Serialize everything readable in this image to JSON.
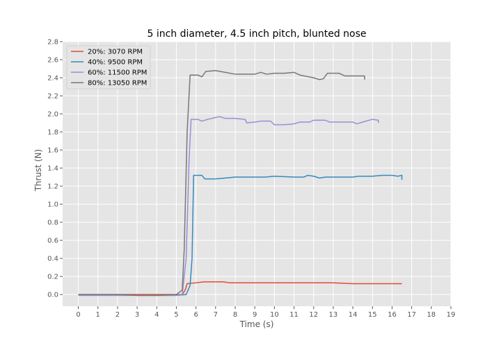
{
  "chart_data": {
    "type": "line",
    "title": "5 inch diameter, 4.5 inch pitch, blunted nose",
    "xlabel": "Time (s)",
    "ylabel": "Thrust (N)",
    "xlim": [
      -0.8,
      19
    ],
    "ylim": [
      -0.13,
      2.8
    ],
    "xticks": [
      0,
      1,
      2,
      3,
      4,
      5,
      6,
      7,
      8,
      9,
      10,
      11,
      12,
      13,
      14,
      15,
      16,
      17,
      18,
      19
    ],
    "yticks": [
      0.0,
      0.2,
      0.4,
      0.6,
      0.8,
      1.0,
      1.2,
      1.4,
      1.6,
      1.8,
      2.0,
      2.2,
      2.4,
      2.6,
      2.8
    ],
    "grid": true,
    "legend_position": "upper-left",
    "background_color": "#e5e5e5",
    "grid_color": "#ffffff",
    "series": [
      {
        "name": "20%: 3070 RPM",
        "color": "#e24a33",
        "points": [
          [
            0,
            0.0
          ],
          [
            1,
            0.0
          ],
          [
            2,
            0.0
          ],
          [
            3,
            0.0
          ],
          [
            4,
            0.0
          ],
          [
            5,
            0.0
          ],
          [
            5.3,
            0.0
          ],
          [
            5.45,
            0.05
          ],
          [
            5.55,
            0.12
          ],
          [
            6,
            0.13
          ],
          [
            6.4,
            0.14
          ],
          [
            7,
            0.14
          ],
          [
            7.4,
            0.14
          ],
          [
            7.7,
            0.13
          ],
          [
            8,
            0.13
          ],
          [
            9,
            0.13
          ],
          [
            9.5,
            0.13
          ],
          [
            10,
            0.13
          ],
          [
            10.3,
            0.13
          ],
          [
            11,
            0.13
          ],
          [
            12,
            0.13
          ],
          [
            13,
            0.13
          ],
          [
            14,
            0.12
          ],
          [
            15,
            0.12
          ],
          [
            16,
            0.12
          ],
          [
            16.5,
            0.12
          ]
        ]
      },
      {
        "name": "40%: 9500 RPM",
        "color": "#348abd",
        "points": [
          [
            0,
            0.0
          ],
          [
            1,
            -0.01
          ],
          [
            2,
            0.0
          ],
          [
            3,
            -0.01
          ],
          [
            4,
            -0.01
          ],
          [
            5,
            -0.01
          ],
          [
            5.5,
            0.0
          ],
          [
            5.7,
            0.1
          ],
          [
            5.8,
            0.4
          ],
          [
            5.88,
            1.32
          ],
          [
            6.3,
            1.32
          ],
          [
            6.45,
            1.28
          ],
          [
            7,
            1.28
          ],
          [
            7.5,
            1.29
          ],
          [
            8,
            1.3
          ],
          [
            9,
            1.3
          ],
          [
            9.5,
            1.3
          ],
          [
            10,
            1.31
          ],
          [
            11,
            1.3
          ],
          [
            11.5,
            1.3
          ],
          [
            11.7,
            1.32
          ],
          [
            12,
            1.31
          ],
          [
            12.3,
            1.29
          ],
          [
            12.6,
            1.3
          ],
          [
            13,
            1.3
          ],
          [
            14,
            1.3
          ],
          [
            14.3,
            1.31
          ],
          [
            15,
            1.31
          ],
          [
            15.5,
            1.32
          ],
          [
            16,
            1.32
          ],
          [
            16.3,
            1.31
          ],
          [
            16.5,
            1.32
          ],
          [
            16.5,
            1.27
          ]
        ]
      },
      {
        "name": "60%: 11500 RPM",
        "color": "#988ed5",
        "points": [
          [
            0,
            -0.01
          ],
          [
            1,
            -0.01
          ],
          [
            2,
            -0.01
          ],
          [
            3,
            -0.01
          ],
          [
            4,
            -0.01
          ],
          [
            5,
            -0.01
          ],
          [
            5.3,
            0.0
          ],
          [
            5.5,
            0.4
          ],
          [
            5.65,
            1.5
          ],
          [
            5.75,
            1.94
          ],
          [
            6.1,
            1.94
          ],
          [
            6.3,
            1.92
          ],
          [
            6.6,
            1.94
          ],
          [
            7,
            1.96
          ],
          [
            7.2,
            1.97
          ],
          [
            7.5,
            1.95
          ],
          [
            8,
            1.95
          ],
          [
            8.5,
            1.94
          ],
          [
            8.6,
            1.9
          ],
          [
            9,
            1.91
          ],
          [
            9.3,
            1.92
          ],
          [
            9.8,
            1.92
          ],
          [
            10,
            1.88
          ],
          [
            10.5,
            1.88
          ],
          [
            11,
            1.89
          ],
          [
            11.3,
            1.91
          ],
          [
            11.8,
            1.91
          ],
          [
            12,
            1.93
          ],
          [
            12.6,
            1.93
          ],
          [
            12.8,
            1.91
          ],
          [
            13.5,
            1.91
          ],
          [
            14,
            1.91
          ],
          [
            14.2,
            1.89
          ],
          [
            14.5,
            1.91
          ],
          [
            15,
            1.94
          ],
          [
            15.3,
            1.93
          ],
          [
            15.3,
            1.9
          ]
        ]
      },
      {
        "name": "80%: 13050 RPM",
        "color": "#777777",
        "points": [
          [
            0,
            0.0
          ],
          [
            1,
            0.0
          ],
          [
            2,
            0.0
          ],
          [
            3,
            -0.01
          ],
          [
            4,
            -0.01
          ],
          [
            5,
            0.0
          ],
          [
            5.3,
            0.05
          ],
          [
            5.4,
            0.5
          ],
          [
            5.55,
            1.8
          ],
          [
            5.7,
            2.43
          ],
          [
            6.1,
            2.43
          ],
          [
            6.3,
            2.41
          ],
          [
            6.5,
            2.47
          ],
          [
            7,
            2.48
          ],
          [
            7.5,
            2.46
          ],
          [
            8,
            2.44
          ],
          [
            8.5,
            2.44
          ],
          [
            9,
            2.44
          ],
          [
            9.3,
            2.46
          ],
          [
            9.6,
            2.44
          ],
          [
            10,
            2.45
          ],
          [
            10.5,
            2.45
          ],
          [
            11,
            2.46
          ],
          [
            11.3,
            2.43
          ],
          [
            12,
            2.4
          ],
          [
            12.3,
            2.38
          ],
          [
            12.5,
            2.39
          ],
          [
            12.7,
            2.45
          ],
          [
            13.3,
            2.45
          ],
          [
            13.6,
            2.42
          ],
          [
            14,
            2.42
          ],
          [
            14.3,
            2.42
          ],
          [
            14.6,
            2.42
          ],
          [
            14.6,
            2.38
          ]
        ]
      }
    ]
  }
}
